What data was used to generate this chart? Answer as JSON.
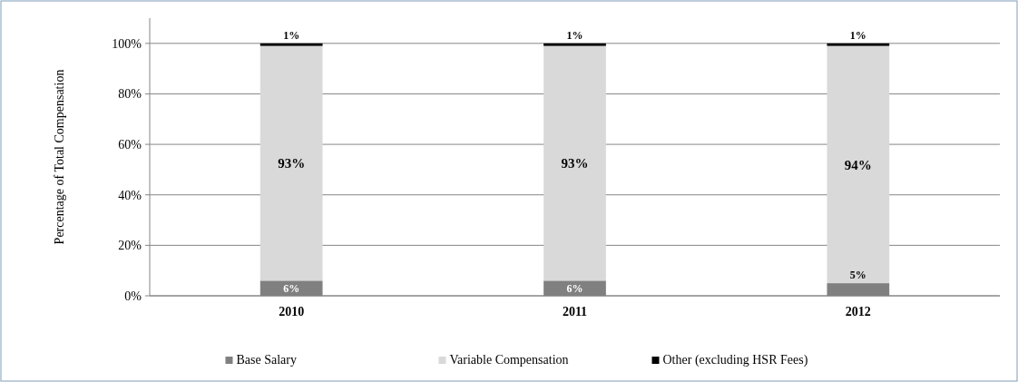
{
  "chart_data": {
    "type": "bar",
    "stacked": true,
    "ylabel": "Percentage of Total Compensation",
    "categories": [
      "2010",
      "2011",
      "2012"
    ],
    "series": [
      {
        "name": "Base Salary",
        "color": "#808080",
        "values": [
          6,
          6,
          5
        ],
        "value_labels": [
          "6%",
          "6%",
          "5%"
        ]
      },
      {
        "name": "Variable Compensation",
        "color": "#d9d9d9",
        "values": [
          93,
          93,
          94
        ],
        "value_labels": [
          "93%",
          "93%",
          "94%"
        ]
      },
      {
        "name": "Other (excluding HSR Fees)",
        "color": "#000000",
        "values": [
          1,
          1,
          1
        ],
        "value_labels": [
          "1%",
          "1%",
          "1%"
        ]
      }
    ],
    "ylim": [
      0,
      110
    ],
    "yticks": [
      {
        "value": 0,
        "label": "0%"
      },
      {
        "value": 20,
        "label": "20%"
      },
      {
        "value": 40,
        "label": "40%"
      },
      {
        "value": 60,
        "label": "60%"
      },
      {
        "value": 80,
        "label": "80%"
      },
      {
        "value": 100,
        "label": "100%"
      }
    ],
    "grid": "y",
    "legend": "bottom"
  }
}
